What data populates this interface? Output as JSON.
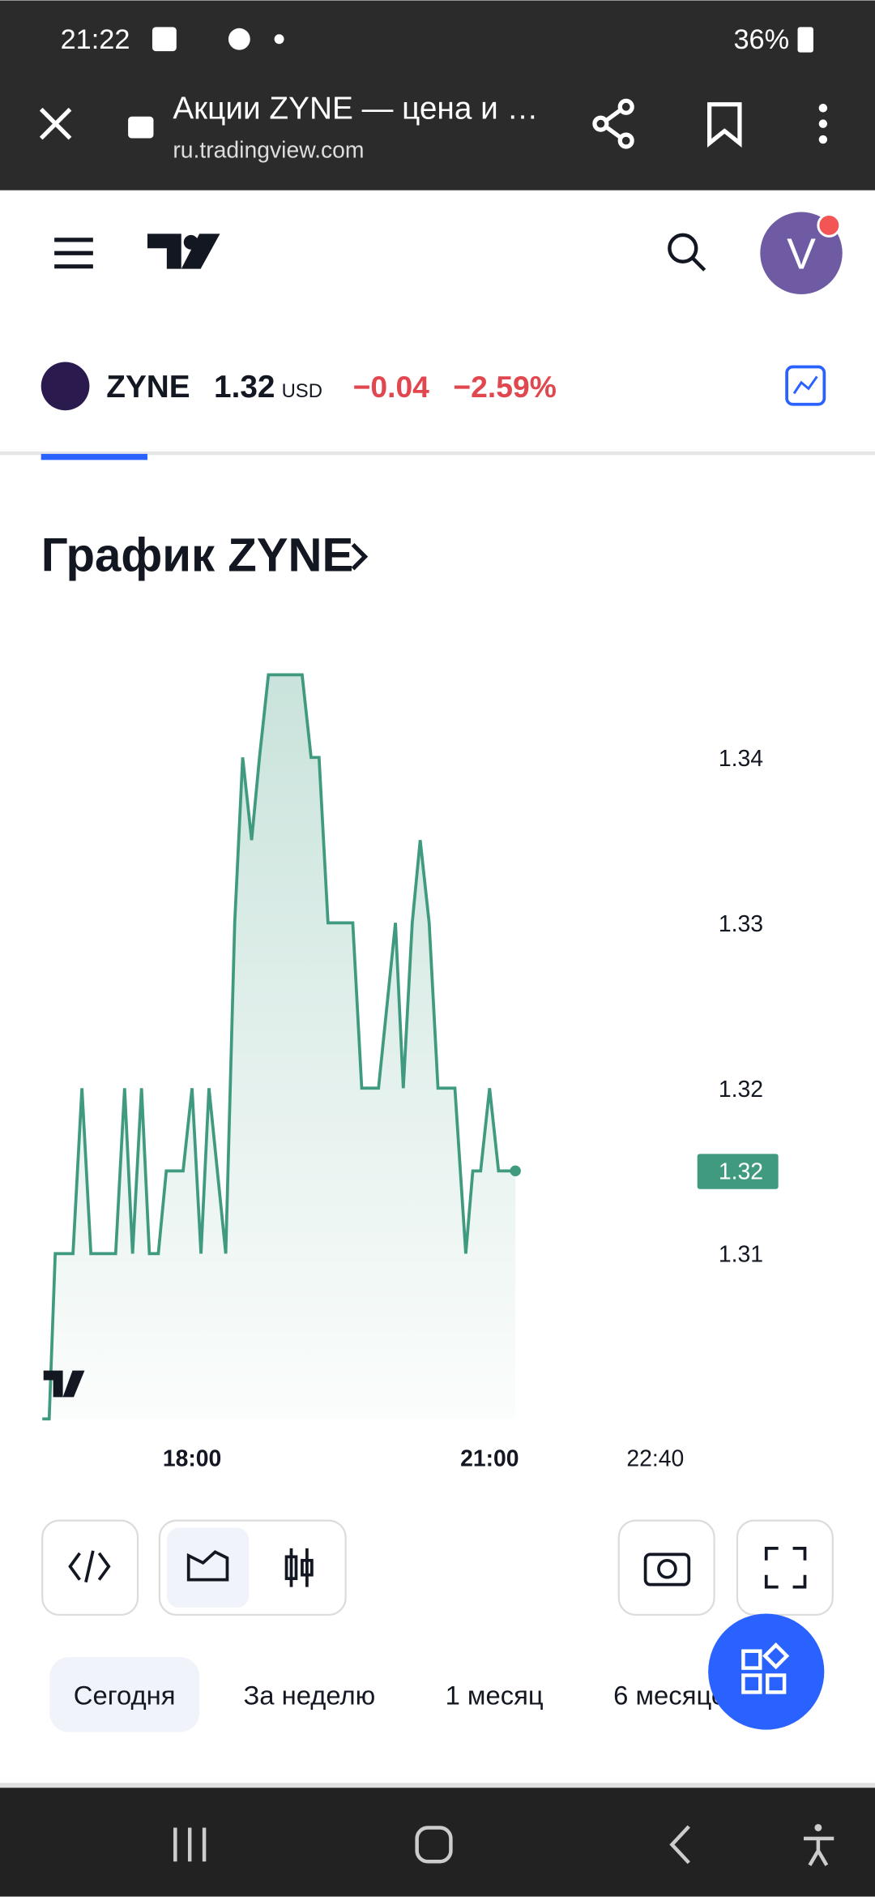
{
  "status_bar": {
    "time": "21:22",
    "battery": "36%"
  },
  "browser": {
    "title": "Акции ZYNE — цена и …",
    "url": "ru.tradingview.com"
  },
  "ticker": {
    "symbol": "ZYNE",
    "price": "1.32",
    "currency": "USD",
    "change": "−0.04",
    "change_pct": "−2.59%"
  },
  "ranges": [
    "Сегодня",
    "За неделю",
    "1 месяц",
    "6 месяцев"
  ],
  "chart_data": {
    "type": "line",
    "title": "График ZYNE",
    "color": "#3f9a7f",
    "x": [
      16.49,
      16.56,
      16.62,
      16.8,
      16.89,
      16.98,
      17.23,
      17.32,
      17.4,
      17.49,
      17.57,
      17.66,
      17.74,
      17.91,
      18.0,
      18.09,
      18.17,
      18.34,
      18.43,
      18.51,
      18.6,
      18.68,
      18.77,
      19.11,
      19.2,
      19.28,
      19.37,
      19.62,
      19.71,
      19.88,
      20.05,
      20.13,
      20.22,
      20.3,
      20.39,
      20.48,
      20.65,
      20.76,
      20.83,
      20.91,
      21.0,
      21.09,
      21.26
    ],
    "values": [
      1.3,
      1.3,
      1.31,
      1.31,
      1.32,
      1.31,
      1.31,
      1.32,
      1.31,
      1.32,
      1.31,
      1.31,
      1.315,
      1.315,
      1.32,
      1.31,
      1.32,
      1.31,
      1.33,
      1.34,
      1.335,
      1.34,
      1.345,
      1.345,
      1.34,
      1.34,
      1.33,
      1.33,
      1.32,
      1.32,
      1.33,
      1.32,
      1.33,
      1.335,
      1.33,
      1.32,
      1.32,
      1.31,
      1.315,
      1.315,
      1.32,
      1.315,
      1.315
    ],
    "xlim": [
      16.49,
      23.07
    ],
    "ylim": [
      1.3,
      1.346
    ],
    "xticks": [
      {
        "value": 18,
        "label": "18:00"
      },
      {
        "value": 21,
        "label": "21:00"
      },
      {
        "value": 22.67,
        "label": "22:40"
      }
    ],
    "yticks": [
      1.31,
      1.32,
      1.33,
      1.34
    ],
    "price_label": {
      "value": 1.315,
      "label": "1.32"
    }
  }
}
